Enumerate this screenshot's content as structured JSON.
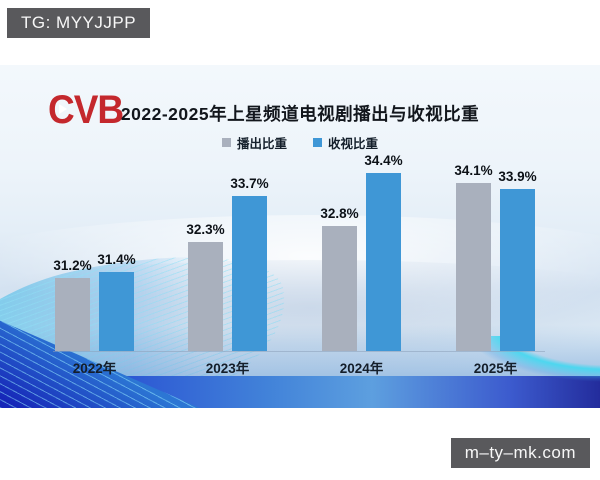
{
  "overlays": {
    "top_left_badge": "TG: MYYJJPP",
    "bottom_right_badge": "m–ty–mk.com"
  },
  "logo": {
    "text": "CVB",
    "color": "#c4282d"
  },
  "chart_data": {
    "type": "bar",
    "title": "2022-2025年上星频道电视剧播出与收视比重",
    "categories": [
      "2022年",
      "2023年",
      "2024年",
      "2025年"
    ],
    "series": [
      {
        "name": "播出比重",
        "color": "#a9b0bd",
        "values": [
          31.2,
          32.3,
          32.8,
          34.1
        ]
      },
      {
        "name": "收视比重",
        "color": "#3f97d6",
        "values": [
          31.4,
          33.7,
          34.4,
          33.9
        ]
      }
    ],
    "value_suffix": "%",
    "ylim": [
      29,
      35.5
    ],
    "legend_position": "top",
    "grid": false
  }
}
